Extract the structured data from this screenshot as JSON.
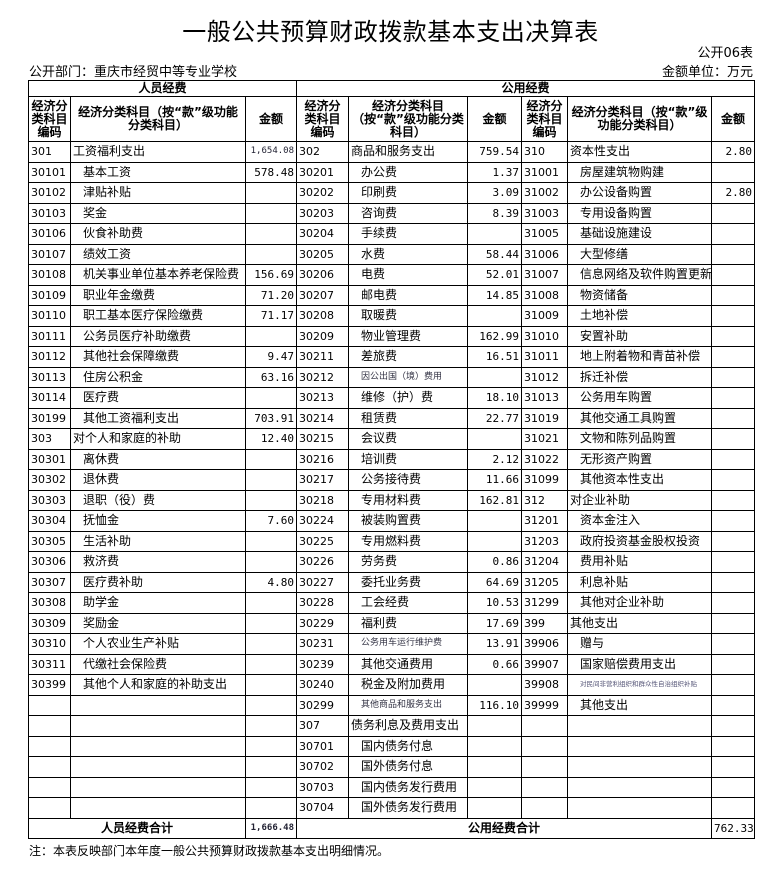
{
  "title": "一般公共预算财政拨款基本支出决算表",
  "form_no": "公开06表",
  "department": "公开部门：重庆市经贸中等专业学校",
  "unit": "金额单位：万元",
  "headers": {
    "personnel": "人员经费",
    "public": "公用经费",
    "code": "经济分类科目编码",
    "name": "经济分类科目（按“款”级功能分类科目）",
    "amount": "金额"
  },
  "personnel_rows": [
    {
      "code": "301",
      "name": "工资福利支出",
      "amount": "1,654.08"
    },
    {
      "code": "30101",
      "name": "基本工资",
      "amount": "578.48"
    },
    {
      "code": "30102",
      "name": "津贴补贴",
      "amount": ""
    },
    {
      "code": "30103",
      "name": "奖金",
      "amount": ""
    },
    {
      "code": "30106",
      "name": "伙食补助费",
      "amount": ""
    },
    {
      "code": "30107",
      "name": "绩效工资",
      "amount": ""
    },
    {
      "code": "30108",
      "name": "机关事业单位基本养老保险费",
      "amount": "156.69"
    },
    {
      "code": "30109",
      "name": "职业年金缴费",
      "amount": "71.20"
    },
    {
      "code": "30110",
      "name": "职工基本医疗保险缴费",
      "amount": "71.17"
    },
    {
      "code": "30111",
      "name": "公务员医疗补助缴费",
      "amount": ""
    },
    {
      "code": "30112",
      "name": "其他社会保障缴费",
      "amount": "9.47"
    },
    {
      "code": "30113",
      "name": "住房公积金",
      "amount": "63.16"
    },
    {
      "code": "30114",
      "name": "医疗费",
      "amount": ""
    },
    {
      "code": "30199",
      "name": "其他工资福利支出",
      "amount": "703.91"
    },
    {
      "code": "303",
      "name": "对个人和家庭的补助",
      "amount": "12.40"
    },
    {
      "code": "30301",
      "name": "离休费",
      "amount": ""
    },
    {
      "code": "30302",
      "name": "退休费",
      "amount": ""
    },
    {
      "code": "30303",
      "name": "退职（役）费",
      "amount": ""
    },
    {
      "code": "30304",
      "name": "抚恤金",
      "amount": "7.60"
    },
    {
      "code": "30305",
      "name": "生活补助",
      "amount": ""
    },
    {
      "code": "30306",
      "name": "救济费",
      "amount": ""
    },
    {
      "code": "30307",
      "name": "医疗费补助",
      "amount": "4.80"
    },
    {
      "code": "30308",
      "name": "助学金",
      "amount": ""
    },
    {
      "code": "30309",
      "name": "奖励金",
      "amount": ""
    },
    {
      "code": "30310",
      "name": "个人农业生产补贴",
      "amount": ""
    },
    {
      "code": "30311",
      "name": "代缴社会保险费",
      "amount": ""
    },
    {
      "code": "30399",
      "name": "其他个人和家庭的补助支出",
      "amount": ""
    },
    {
      "code": "",
      "name": "",
      "amount": ""
    },
    {
      "code": "",
      "name": "",
      "amount": ""
    },
    {
      "code": "",
      "name": "",
      "amount": ""
    },
    {
      "code": "",
      "name": "",
      "amount": ""
    },
    {
      "code": "",
      "name": "",
      "amount": ""
    },
    {
      "code": "",
      "name": "",
      "amount": ""
    }
  ],
  "public_rows_a": [
    {
      "code": "302",
      "name": "商品和服务支出",
      "amount": "759.54"
    },
    {
      "code": "30201",
      "name": "办公费",
      "amount": "1.37"
    },
    {
      "code": "30202",
      "name": "印刷费",
      "amount": "3.09"
    },
    {
      "code": "30203",
      "name": "咨询费",
      "amount": "8.39"
    },
    {
      "code": "30204",
      "name": "手续费",
      "amount": ""
    },
    {
      "code": "30205",
      "name": "水费",
      "amount": "58.44"
    },
    {
      "code": "30206",
      "name": "电费",
      "amount": "52.01"
    },
    {
      "code": "30207",
      "name": "邮电费",
      "amount": "14.85"
    },
    {
      "code": "30208",
      "name": "取暖费",
      "amount": ""
    },
    {
      "code": "30209",
      "name": "物业管理费",
      "amount": "162.99"
    },
    {
      "code": "30211",
      "name": "差旅费",
      "amount": "16.51"
    },
    {
      "code": "30212",
      "name": "因公出国（境）费用",
      "amount": ""
    },
    {
      "code": "30213",
      "name": "维修（护）费",
      "amount": "18.10"
    },
    {
      "code": "30214",
      "name": "租赁费",
      "amount": "22.77"
    },
    {
      "code": "30215",
      "name": "会议费",
      "amount": ""
    },
    {
      "code": "30216",
      "name": "培训费",
      "amount": "2.12"
    },
    {
      "code": "30217",
      "name": "公务接待费",
      "amount": "11.66"
    },
    {
      "code": "30218",
      "name": "专用材料费",
      "amount": "162.81"
    },
    {
      "code": "30224",
      "name": "被装购置费",
      "amount": ""
    },
    {
      "code": "30225",
      "name": "专用燃料费",
      "amount": ""
    },
    {
      "code": "30226",
      "name": "劳务费",
      "amount": "0.86"
    },
    {
      "code": "30227",
      "name": "委托业务费",
      "amount": "64.69"
    },
    {
      "code": "30228",
      "name": "工会经费",
      "amount": "10.53"
    },
    {
      "code": "30229",
      "name": "福利费",
      "amount": "17.69"
    },
    {
      "code": "30231",
      "name": "公务用车运行维护费",
      "amount": "13.91"
    },
    {
      "code": "30239",
      "name": "其他交通费用",
      "amount": "0.66"
    },
    {
      "code": "30240",
      "name": "税金及附加费用",
      "amount": ""
    },
    {
      "code": "30299",
      "name": "其他商品和服务支出",
      "amount": "116.10"
    },
    {
      "code": "307",
      "name": "债务利息及费用支出",
      "amount": ""
    },
    {
      "code": "30701",
      "name": "国内债务付息",
      "amount": ""
    },
    {
      "code": "30702",
      "name": "国外债务付息",
      "amount": ""
    },
    {
      "code": "30703",
      "name": "国内债务发行费用",
      "amount": ""
    },
    {
      "code": "30704",
      "name": "国外债务发行费用",
      "amount": ""
    }
  ],
  "public_rows_b": [
    {
      "code": "310",
      "name": "资本性支出",
      "amount": "2.80"
    },
    {
      "code": "31001",
      "name": "房屋建筑物购建",
      "amount": ""
    },
    {
      "code": "31002",
      "name": "办公设备购置",
      "amount": "2.80"
    },
    {
      "code": "31003",
      "name": "专用设备购置",
      "amount": ""
    },
    {
      "code": "31005",
      "name": "基础设施建设",
      "amount": ""
    },
    {
      "code": "31006",
      "name": "大型修缮",
      "amount": ""
    },
    {
      "code": "31007",
      "name": "信息网络及软件购置更新",
      "amount": ""
    },
    {
      "code": "31008",
      "name": "物资储备",
      "amount": ""
    },
    {
      "code": "31009",
      "name": "土地补偿",
      "amount": ""
    },
    {
      "code": "31010",
      "name": "安置补助",
      "amount": ""
    },
    {
      "code": "31011",
      "name": "地上附着物和青苗补偿",
      "amount": ""
    },
    {
      "code": "31012",
      "name": "拆迁补偿",
      "amount": ""
    },
    {
      "code": "31013",
      "name": "公务用车购置",
      "amount": ""
    },
    {
      "code": "31019",
      "name": "其他交通工具购置",
      "amount": ""
    },
    {
      "code": "31021",
      "name": "文物和陈列品购置",
      "amount": ""
    },
    {
      "code": "31022",
      "name": "无形资产购置",
      "amount": ""
    },
    {
      "code": "31099",
      "name": "其他资本性支出",
      "amount": ""
    },
    {
      "code": "312",
      "name": "对企业补助",
      "amount": ""
    },
    {
      "code": "31201",
      "name": "资本金注入",
      "amount": ""
    },
    {
      "code": "31203",
      "name": "政府投资基金股权投资",
      "amount": ""
    },
    {
      "code": "31204",
      "name": "费用补贴",
      "amount": ""
    },
    {
      "code": "31205",
      "name": "利息补贴",
      "amount": ""
    },
    {
      "code": "31299",
      "name": "其他对企业补助",
      "amount": ""
    },
    {
      "code": "399",
      "name": "其他支出",
      "amount": ""
    },
    {
      "code": "39906",
      "name": "赠与",
      "amount": ""
    },
    {
      "code": "39907",
      "name": "国家赔偿费用支出",
      "amount": ""
    },
    {
      "code": "39908",
      "name": "对民间非营利组织和群众性自治组织补贴",
      "amount": ""
    },
    {
      "code": "39999",
      "name": "其他支出",
      "amount": ""
    },
    {
      "code": "",
      "name": "",
      "amount": ""
    },
    {
      "code": "",
      "name": "",
      "amount": ""
    },
    {
      "code": "",
      "name": "",
      "amount": ""
    },
    {
      "code": "",
      "name": "",
      "amount": ""
    },
    {
      "code": "",
      "name": "",
      "amount": ""
    }
  ],
  "totals": {
    "personnel_label": "人员经费合计",
    "personnel_amount": "1,666.48",
    "public_label": "公用经费合计",
    "public_amount": "762.33"
  },
  "note": "注：本表反映部门本年度一般公共预算财政拨款基本支出明细情况。"
}
